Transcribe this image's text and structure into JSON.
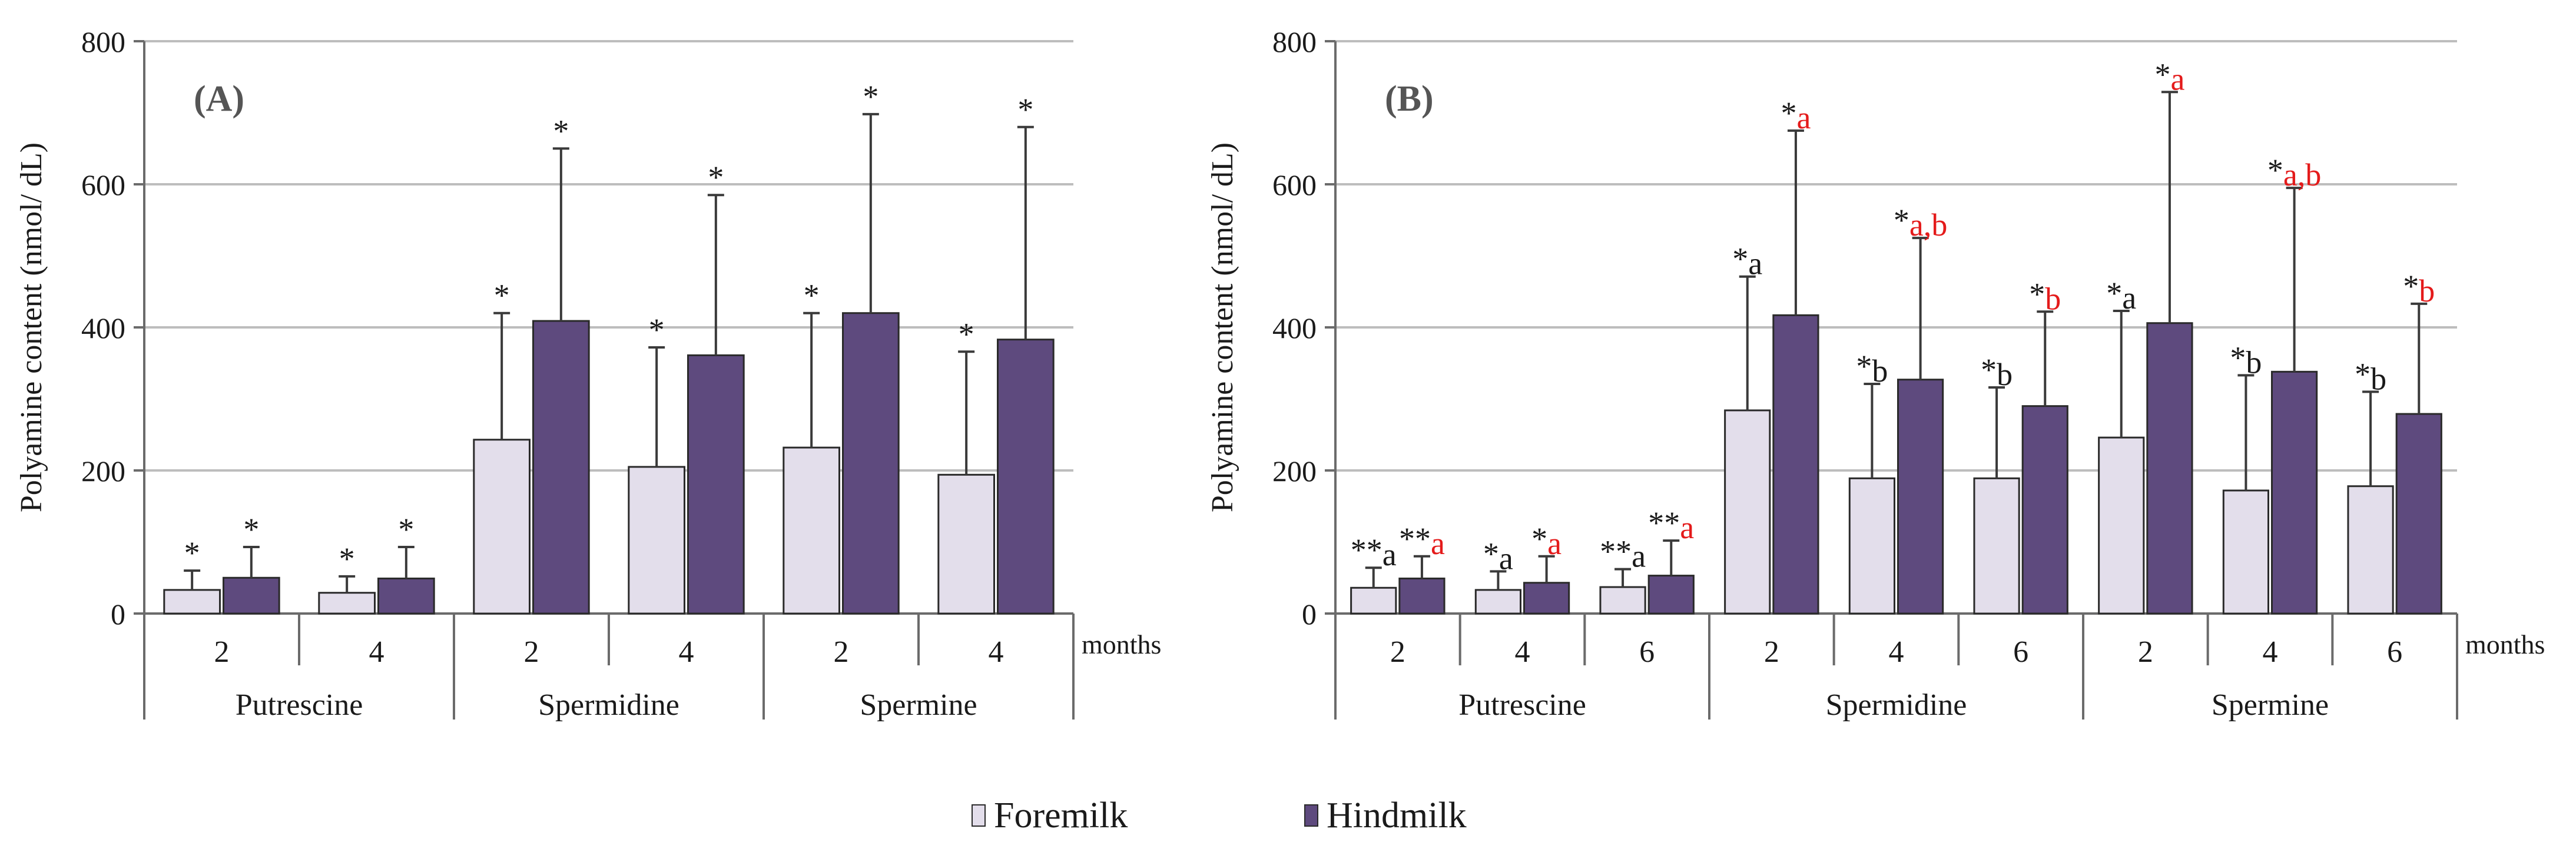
{
  "colors": {
    "foremilk": "#E3DEEB",
    "hindmilk": "#5E4A7E",
    "bar_edge": "#2a2a2a",
    "grid": "#bdbdbd",
    "axis": "#6b6b6b",
    "text": "#1a1a1a",
    "red": "#E41B1B"
  },
  "legend": {
    "foremilk_label": "Foremilk",
    "hindmilk_label": "Hindmilk"
  },
  "chart_data": [
    {
      "type": "bar",
      "panel_label": "(A)",
      "ylabel": "Polyamine content (nmol/ dL)",
      "ylim": [
        0,
        800
      ],
      "yticks": [
        0,
        200,
        400,
        600,
        800
      ],
      "months_label": "months",
      "grid": true,
      "groups": [
        {
          "name": "Putrescine",
          "months": [
            "2",
            "4"
          ]
        },
        {
          "name": "Spermidine",
          "months": [
            "2",
            "4"
          ]
        },
        {
          "name": "Spermine",
          "months": [
            "2",
            "4"
          ]
        }
      ],
      "series": [
        {
          "name": "Foremilk",
          "values": [
            33,
            29,
            243,
            205,
            232,
            194
          ],
          "errors": [
            27,
            23,
            177,
            167,
            188,
            172
          ],
          "labels": [
            [
              "*"
            ],
            [
              "*"
            ],
            [
              "*"
            ],
            [
              "*"
            ],
            [
              "*"
            ],
            [
              "*"
            ]
          ]
        },
        {
          "name": "Hindmilk",
          "values": [
            50,
            49,
            409,
            361,
            420,
            383
          ],
          "errors": [
            43,
            44,
            241,
            224,
            278,
            297
          ],
          "labels": [
            [
              "*"
            ],
            [
              "*"
            ],
            [
              "*"
            ],
            [
              "*"
            ],
            [
              "*"
            ],
            [
              "*"
            ]
          ]
        }
      ]
    },
    {
      "type": "bar",
      "panel_label": "(B)",
      "ylabel": "Polyamine content (nmol/ dL)",
      "ylim": [
        0,
        800
      ],
      "yticks": [
        0,
        200,
        400,
        600,
        800
      ],
      "months_label": "months",
      "grid": true,
      "groups": [
        {
          "name": "Putrescine",
          "months": [
            "2",
            "4",
            "6"
          ]
        },
        {
          "name": "Spermidine",
          "months": [
            "2",
            "4",
            "6"
          ]
        },
        {
          "name": "Spermine",
          "months": [
            "2",
            "4",
            "6"
          ]
        }
      ],
      "series": [
        {
          "name": "Foremilk",
          "values": [
            36,
            33,
            37,
            284,
            189,
            189,
            246,
            172,
            178
          ],
          "errors": [
            28,
            26,
            25,
            187,
            132,
            127,
            177,
            161,
            132
          ],
          "labels": [
            [
              "**",
              "a"
            ],
            [
              "*",
              "a"
            ],
            [
              "**",
              "a"
            ],
            [
              "*",
              "a"
            ],
            [
              "*",
              "b"
            ],
            [
              "*",
              "b"
            ],
            [
              "*",
              "a"
            ],
            [
              "*",
              "b"
            ],
            [
              "*",
              "b"
            ]
          ]
        },
        {
          "name": "Hindmilk",
          "values": [
            49,
            43,
            53,
            417,
            327,
            290,
            406,
            338,
            279
          ],
          "errors": [
            31,
            37,
            49,
            258,
            198,
            132,
            323,
            257,
            154
          ],
          "labels": [
            [
              "**",
              "a"
            ],
            [
              "*",
              "a"
            ],
            [
              "**",
              "a"
            ],
            [
              "*",
              "a"
            ],
            [
              "*",
              "a,b"
            ],
            [
              "*",
              "b"
            ],
            [
              "*",
              "a"
            ],
            [
              "*",
              "a,b"
            ],
            [
              "*",
              "b"
            ]
          ]
        }
      ]
    }
  ]
}
